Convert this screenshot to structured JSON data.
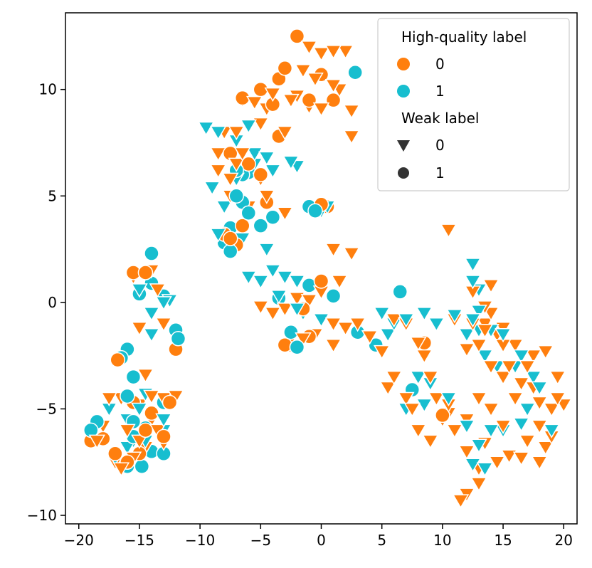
{
  "chart_data": {
    "type": "scatter",
    "title": "",
    "xlabel": "",
    "ylabel": "",
    "xlim": [
      -21.1,
      21.1
    ],
    "ylim": [
      -10.4,
      13.6
    ],
    "xticks": [
      -20,
      -15,
      -10,
      -5,
      0,
      5,
      10,
      15,
      20
    ],
    "yticks": [
      -10,
      -5,
      0,
      5,
      10
    ],
    "xtick_labels": [
      "−20",
      "−15",
      "−10",
      "−5",
      "0",
      "5",
      "10",
      "15",
      "20"
    ],
    "ytick_labels": [
      "−10",
      "−5",
      "0",
      "5",
      "10"
    ],
    "grid": false,
    "legend_position": "top-right",
    "legend": {
      "hue_title": "High-quality label",
      "hue_entries": [
        {
          "label": "0",
          "color": "#ff7f0e"
        },
        {
          "label": "1",
          "color": "#17becf"
        }
      ],
      "style_title": "Weak label",
      "style_entries": [
        {
          "label": "0",
          "marker": "triangle-down"
        },
        {
          "label": "1",
          "marker": "circle"
        }
      ]
    },
    "colors": {
      "hq0": "#ff7f0e",
      "hq1": "#17becf",
      "marker_dark": "#333333"
    },
    "series": [
      {
        "name": "HQ 0 / Weak 0",
        "hq": 0,
        "weak": 0,
        "points": [
          [
            -1,
            12
          ],
          [
            0,
            11.7
          ],
          [
            1,
            11.8
          ],
          [
            2,
            11.8
          ],
          [
            1.5,
            10
          ],
          [
            -0.5,
            10.5
          ],
          [
            -1.5,
            10.9
          ],
          [
            -2.5,
            9.5
          ],
          [
            -4,
            9.8
          ],
          [
            -4.5,
            9.1
          ],
          [
            -5,
            8.4
          ],
          [
            -5.5,
            9.4
          ],
          [
            -3,
            8
          ],
          [
            -2,
            9.7
          ],
          [
            -1,
            9.2
          ],
          [
            0,
            9.1
          ],
          [
            1,
            10.2
          ],
          [
            2.5,
            9
          ],
          [
            2.5,
            7.8
          ],
          [
            -6.5,
            7
          ],
          [
            -7,
            6.5
          ],
          [
            -7.5,
            5.8
          ],
          [
            -8,
            8
          ],
          [
            -8.5,
            7
          ],
          [
            -6,
            4.5
          ],
          [
            -5,
            5.8
          ],
          [
            -4.5,
            5
          ],
          [
            -3,
            4.2
          ],
          [
            1,
            2.5
          ],
          [
            1.5,
            1
          ],
          [
            2.5,
            2.3
          ],
          [
            0,
            0.5
          ],
          [
            -1,
            0.1
          ],
          [
            -2,
            0.2
          ],
          [
            -3,
            -0.3
          ],
          [
            -4,
            -0.5
          ],
          [
            -5,
            -0.2
          ],
          [
            -0.5,
            -1.5
          ],
          [
            -1.5,
            -1.7
          ],
          [
            -2.5,
            -1.7
          ],
          [
            1,
            -1
          ],
          [
            2,
            -1.2
          ],
          [
            3,
            -1
          ],
          [
            4,
            -1.6
          ],
          [
            5,
            -2.3
          ],
          [
            1,
            -2
          ],
          [
            6,
            -0.8
          ],
          [
            8,
            -1.9
          ],
          [
            7,
            -1
          ],
          [
            8.5,
            -2.5
          ],
          [
            9,
            -3.5
          ],
          [
            10.5,
            -5.2
          ],
          [
            11,
            -6
          ],
          [
            12,
            -5.5
          ],
          [
            13,
            -4.5
          ],
          [
            14,
            -5
          ],
          [
            15,
            -5.8
          ],
          [
            13.5,
            -6.6
          ],
          [
            14.5,
            -7.5
          ],
          [
            15.5,
            -7.2
          ],
          [
            16.5,
            -7.3
          ],
          [
            17,
            -6.5
          ],
          [
            18,
            -7.5
          ],
          [
            18.5,
            -6.8
          ],
          [
            19,
            -6.3
          ],
          [
            18,
            -5.8
          ],
          [
            19,
            -5
          ],
          [
            20,
            -4.8
          ],
          [
            19.5,
            -4.5
          ],
          [
            18,
            -4.7
          ],
          [
            17.5,
            -4
          ],
          [
            16.5,
            -3.8
          ],
          [
            17,
            -3
          ],
          [
            17.5,
            -2.5
          ],
          [
            18.5,
            -2.3
          ],
          [
            19.5,
            -3.5
          ],
          [
            16,
            -2
          ],
          [
            15,
            -2
          ],
          [
            14.5,
            -1.5
          ],
          [
            13.5,
            -1.3
          ],
          [
            12.5,
            -1
          ],
          [
            11,
            -0.8
          ],
          [
            14,
            -0.5
          ],
          [
            13.5,
            -1
          ],
          [
            15,
            -1.2
          ],
          [
            13,
            -2
          ],
          [
            12,
            -2.2
          ],
          [
            14,
            -3
          ],
          [
            15,
            -3.5
          ],
          [
            16,
            -4.5
          ],
          [
            15.5,
            -3
          ],
          [
            12,
            -7
          ],
          [
            13,
            -7.8
          ],
          [
            13,
            -8.5
          ],
          [
            12,
            -9
          ],
          [
            11.5,
            -9.3
          ],
          [
            13.5,
            -0.2
          ],
          [
            14,
            0.8
          ],
          [
            12.5,
            0.5
          ],
          [
            -15,
            -1.2
          ],
          [
            -14,
            -0.5
          ],
          [
            -13,
            -1
          ],
          [
            -16.5,
            -4.5
          ],
          [
            -15,
            -4.8
          ],
          [
            -14,
            -4.4
          ],
          [
            -13,
            -4.5
          ],
          [
            -12,
            -4.4
          ],
          [
            -17.5,
            -4.5
          ],
          [
            -14.5,
            -3.4
          ],
          [
            -15.5,
            1.2
          ],
          [
            -14,
            1.5
          ],
          [
            -13.5,
            0.6
          ],
          [
            -16,
            -6
          ],
          [
            -15,
            -6.5
          ],
          [
            -14,
            -5.5
          ],
          [
            -17,
            -7.5
          ],
          [
            -16.5,
            -7.8
          ],
          [
            -15.5,
            -7.3
          ],
          [
            -14.5,
            -6.8
          ],
          [
            -13.5,
            -6
          ],
          [
            -13,
            -6.6
          ],
          [
            -18,
            -5.8
          ],
          [
            -18.5,
            -6.5
          ],
          [
            6,
            -3.5
          ],
          [
            5.5,
            -4
          ],
          [
            7,
            -4.5
          ],
          [
            7.5,
            -5
          ],
          [
            8,
            -6
          ],
          [
            9,
            -6.5
          ],
          [
            10,
            -5.5
          ],
          [
            10.5,
            -4.8
          ],
          [
            -7,
            8
          ],
          [
            -6.5,
            9.5
          ],
          [
            -8.5,
            6.2
          ],
          [
            -7.5,
            5
          ],
          [
            9.5,
            -4.5
          ],
          [
            10.5,
            3.4
          ]
        ]
      },
      {
        "name": "HQ 0 / Weak 1",
        "hq": 0,
        "weak": 1,
        "points": [
          [
            -2,
            12.5
          ],
          [
            -3,
            11
          ],
          [
            -3.5,
            10.5
          ],
          [
            -5,
            10
          ],
          [
            -6.5,
            9.6
          ],
          [
            -4,
            9.3
          ],
          [
            -1,
            9.5
          ],
          [
            0,
            10.7
          ],
          [
            1,
            9.5
          ],
          [
            -3.5,
            7.8
          ],
          [
            -7.5,
            7
          ],
          [
            -6,
            6.5
          ],
          [
            -5,
            6
          ],
          [
            -4.5,
            4.7
          ],
          [
            0,
            4.6
          ],
          [
            0.5,
            4.5
          ],
          [
            -1.5,
            -0.3
          ],
          [
            0,
            1
          ],
          [
            -1,
            -1.6
          ],
          [
            -2.5,
            -2
          ],
          [
            -3,
            -2
          ],
          [
            -2,
            -2.1
          ],
          [
            -7,
            2.7
          ],
          [
            -7.5,
            3
          ],
          [
            -8,
            3.2
          ],
          [
            10,
            -5.3
          ],
          [
            -15.5,
            1.4
          ],
          [
            -14.5,
            1.4
          ],
          [
            -12,
            -2.2
          ],
          [
            -12.5,
            -4.7
          ],
          [
            -16.8,
            -2.7
          ],
          [
            -19,
            -6.5
          ],
          [
            -18,
            -6.4
          ],
          [
            -17,
            -7.1
          ],
          [
            -16,
            -7.5
          ],
          [
            -15,
            -7.1
          ],
          [
            -14.5,
            -6
          ],
          [
            -13,
            -6.3
          ],
          [
            -14,
            -5.2
          ],
          [
            -15.5,
            -4.7
          ],
          [
            8.5,
            -1.9
          ],
          [
            -6.5,
            3.6
          ]
        ]
      },
      {
        "name": "HQ 1 / Weak 0",
        "hq": 1,
        "weak": 0,
        "points": [
          [
            -9.5,
            8.2
          ],
          [
            -8.5,
            8
          ],
          [
            -7,
            7.6
          ],
          [
            -6,
            8.3
          ],
          [
            -5.5,
            7
          ],
          [
            -4.5,
            6.8
          ],
          [
            -5.5,
            6.5
          ],
          [
            -7,
            5.8
          ],
          [
            -4,
            6.2
          ],
          [
            -2.5,
            6.6
          ],
          [
            -9,
            5.4
          ],
          [
            -8,
            4.5
          ],
          [
            -8.5,
            3.2
          ],
          [
            -6.5,
            3
          ],
          [
            -4.5,
            2.5
          ],
          [
            -6,
            1.2
          ],
          [
            -5,
            1
          ],
          [
            -4,
            1.5
          ],
          [
            -3,
            1.2
          ],
          [
            -2,
            1
          ],
          [
            -3.5,
            0.3
          ],
          [
            -2,
            -0.3
          ],
          [
            -1.5,
            -0.5
          ],
          [
            0,
            -0.8
          ],
          [
            -2,
            6.4
          ],
          [
            0,
            4.3
          ],
          [
            0.5,
            4.5
          ],
          [
            5,
            -0.5
          ],
          [
            5.5,
            -1.5
          ],
          [
            6,
            -1
          ],
          [
            7,
            -0.8
          ],
          [
            8.5,
            -0.5
          ],
          [
            9.5,
            -1
          ],
          [
            8,
            -3.5
          ],
          [
            9,
            -3.8
          ],
          [
            7,
            -5
          ],
          [
            8.5,
            -4.8
          ],
          [
            10.5,
            -4.5
          ],
          [
            12,
            -5.8
          ],
          [
            13,
            -6.7
          ],
          [
            14,
            -6
          ],
          [
            15,
            -6
          ],
          [
            16.5,
            -5.7
          ],
          [
            17,
            -5
          ],
          [
            18,
            -4
          ],
          [
            19,
            -6
          ],
          [
            17.5,
            -3.5
          ],
          [
            16,
            -3
          ],
          [
            16.5,
            -2.5
          ],
          [
            14.5,
            -3
          ],
          [
            13.5,
            -2.5
          ],
          [
            13,
            -1.3
          ],
          [
            12.5,
            -0.8
          ],
          [
            11,
            -0.6
          ],
          [
            12,
            -1.5
          ],
          [
            15,
            -1.5
          ],
          [
            14,
            -1.3
          ],
          [
            13,
            -0.4
          ],
          [
            12.5,
            1
          ],
          [
            12.5,
            1.8
          ],
          [
            13,
            0.6
          ],
          [
            13.5,
            -7.8
          ],
          [
            12.5,
            -7.6
          ],
          [
            -14,
            -0.5
          ],
          [
            -13,
            0
          ],
          [
            -12.5,
            0.1
          ],
          [
            -14,
            -1.5
          ],
          [
            -15,
            0.6
          ],
          [
            -16,
            -5.5
          ],
          [
            -15,
            -5
          ],
          [
            -14.5,
            -4.3
          ],
          [
            -13,
            -5.5
          ],
          [
            -13,
            -6
          ],
          [
            -14.5,
            -6.5
          ],
          [
            -15.5,
            -6.5
          ],
          [
            -17.5,
            -5
          ],
          [
            -16,
            -6.8
          ],
          [
            -17,
            -7.3
          ]
        ]
      },
      {
        "name": "HQ 1 / Weak 1",
        "hq": 1,
        "weak": 1,
        "points": [
          [
            2.8,
            10.8
          ],
          [
            -7,
            6.2
          ],
          [
            -6.5,
            6
          ],
          [
            -6,
            6.1
          ],
          [
            -7,
            5
          ],
          [
            -6.5,
            4.7
          ],
          [
            -6,
            4.2
          ],
          [
            -5,
            3.6
          ],
          [
            -4,
            4
          ],
          [
            -1,
            4.5
          ],
          [
            -0.5,
            4.3
          ],
          [
            -8,
            2.8
          ],
          [
            -7.5,
            2.4
          ],
          [
            -7.5,
            3.5
          ],
          [
            -3.5,
            0.2
          ],
          [
            -1,
            0.8
          ],
          [
            1,
            0.3
          ],
          [
            -2.5,
            -1.4
          ],
          [
            -2,
            -2.1
          ],
          [
            3,
            -1.4
          ],
          [
            4.5,
            -2
          ],
          [
            6.5,
            0.5
          ],
          [
            7.5,
            -4.1
          ],
          [
            -14,
            2.3
          ],
          [
            -15,
            0.4
          ],
          [
            -14,
            0.9
          ],
          [
            -13,
            0.3
          ],
          [
            -12,
            -1.3
          ],
          [
            -11.8,
            -1.7
          ],
          [
            -15.5,
            -3.5
          ],
          [
            -16,
            -2.2
          ],
          [
            -16.5,
            -2.6
          ],
          [
            -18.5,
            -5.6
          ],
          [
            -19,
            -6
          ],
          [
            -16,
            -4.4
          ],
          [
            -14.5,
            -5.9
          ],
          [
            -15.5,
            -5.6
          ],
          [
            -15.5,
            -6.3
          ],
          [
            -16,
            -7.7
          ],
          [
            -14.8,
            -7.7
          ],
          [
            -14,
            -7
          ],
          [
            -13,
            -7.1
          ],
          [
            -13,
            -4.7
          ]
        ]
      }
    ]
  }
}
